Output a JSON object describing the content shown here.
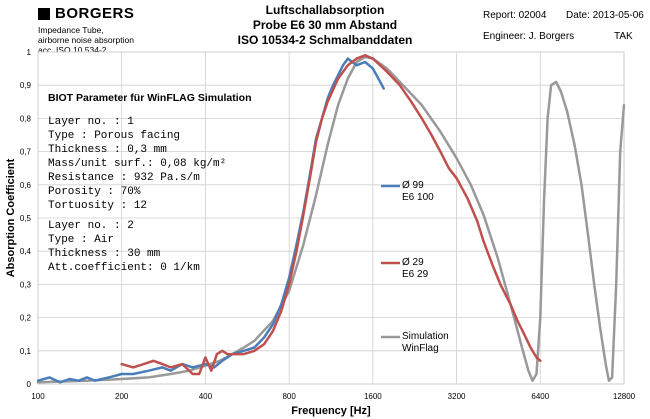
{
  "header": {
    "logo_text": "BORGERS",
    "sub1": "Impedance Tube,",
    "sub2": "airborne noise absorption",
    "sub3": "acc. ISO 10 534-2",
    "title1": "Luftschallabsorption",
    "title2": "Probe E6 30 mm Abstand",
    "title3": "ISO 10534-2 Schmalbanddaten",
    "report": "Report:   02004",
    "date": "Date:   2013-05-06",
    "engineer": "Engineer:   J. Borgers",
    "initials": "TAK"
  },
  "info": {
    "title": "BIOT Parameter für WinFLAG Simulation",
    "lines": [
      "Layer no.      :   1",
      "Type           :   Porous facing",
      "Thickness      :   0,3  mm",
      "Mass/unit surf.:   0,08 kg/m²",
      "Resistance     :  932    Pa.s/m",
      "Porosity       :   70%",
      "Tortuosity     :   12",
      "Layer no.      :   2",
      "Type           :   Air",
      "Thickness      :   30   mm",
      "Att.coefficient:   0    1/km"
    ]
  },
  "chart_data": {
    "type": "line",
    "xlabel": "Frequency [Hz]",
    "ylabel": "Absorption Coefficient",
    "xscale": "log",
    "xlim": [
      100,
      12800
    ],
    "ylim": [
      0,
      1
    ],
    "xticks": [
      100,
      200,
      400,
      800,
      1600,
      3200,
      6400,
      12800
    ],
    "xtick_labels": [
      "100",
      "200",
      "400",
      "800",
      "1600",
      "3200",
      "6400",
      "12800"
    ],
    "yticks": [
      0,
      0.1,
      0.2,
      0.3,
      0.4,
      0.5,
      0.6,
      0.7,
      0.8,
      0.9,
      1
    ],
    "ytick_labels": [
      "0",
      "0,1",
      "0,2",
      "0,3",
      "0,4",
      "0,5",
      "0,6",
      "0,7",
      "0,8",
      "0,9",
      "1"
    ],
    "grid": true,
    "legend_position": "right",
    "series": [
      {
        "name": "Ø 99",
        "sub": "E6 100",
        "color": "#4a7ebb",
        "x": [
          100,
          110,
          120,
          130,
          140,
          150,
          160,
          180,
          200,
          220,
          250,
          280,
          300,
          330,
          360,
          400,
          430,
          460,
          500,
          550,
          600,
          650,
          700,
          750,
          800,
          850,
          900,
          950,
          1000,
          1050,
          1100,
          1150,
          1200,
          1250,
          1300,
          1350,
          1400,
          1500,
          1600,
          1700,
          1750
        ],
        "y": [
          0.01,
          0.02,
          0.005,
          0.015,
          0.01,
          0.02,
          0.01,
          0.02,
          0.03,
          0.03,
          0.04,
          0.05,
          0.04,
          0.06,
          0.05,
          0.06,
          0.05,
          0.07,
          0.09,
          0.1,
          0.11,
          0.14,
          0.18,
          0.24,
          0.32,
          0.42,
          0.52,
          0.63,
          0.74,
          0.8,
          0.86,
          0.9,
          0.93,
          0.96,
          0.98,
          0.97,
          0.96,
          0.97,
          0.95,
          0.91,
          0.89
        ]
      },
      {
        "name": "Ø 29",
        "sub": "E6 29",
        "color": "#c0504d",
        "x": [
          200,
          220,
          240,
          260,
          280,
          300,
          330,
          360,
          380,
          400,
          420,
          440,
          460,
          480,
          500,
          550,
          600,
          650,
          700,
          750,
          800,
          850,
          900,
          950,
          1000,
          1050,
          1100,
          1200,
          1300,
          1400,
          1500,
          1600,
          1700,
          1800,
          1900,
          2000,
          2200,
          2400,
          2600,
          2800,
          3000,
          3200,
          3500,
          3800,
          4000,
          4300,
          4600,
          5000,
          5300,
          5600,
          5900,
          6200,
          6400
        ],
        "y": [
          0.06,
          0.05,
          0.06,
          0.07,
          0.06,
          0.05,
          0.06,
          0.03,
          0.03,
          0.08,
          0.04,
          0.09,
          0.1,
          0.09,
          0.09,
          0.09,
          0.1,
          0.12,
          0.16,
          0.22,
          0.3,
          0.4,
          0.51,
          0.62,
          0.73,
          0.8,
          0.85,
          0.92,
          0.96,
          0.98,
          0.99,
          0.98,
          0.96,
          0.94,
          0.92,
          0.9,
          0.85,
          0.8,
          0.75,
          0.7,
          0.65,
          0.62,
          0.56,
          0.49,
          0.43,
          0.36,
          0.3,
          0.24,
          0.19,
          0.15,
          0.11,
          0.08,
          0.07
        ]
      },
      {
        "name": "Simulation",
        "sub": "WinFlag",
        "color": "#999999",
        "x": [
          100,
          150,
          200,
          250,
          300,
          350,
          400,
          450,
          500,
          550,
          600,
          700,
          800,
          900,
          1000,
          1100,
          1200,
          1300,
          1400,
          1500,
          1600,
          1800,
          2000,
          2400,
          2800,
          3200,
          3600,
          4000,
          4500,
          5000,
          5500,
          5800,
          6000,
          6200,
          6400,
          6600,
          6800,
          7000,
          7300,
          7600,
          8000,
          8500,
          9000,
          9500,
          10000,
          10500,
          11000,
          11300,
          11600,
          12000,
          12400,
          12800
        ],
        "y": [
          0.005,
          0.01,
          0.015,
          0.02,
          0.03,
          0.04,
          0.055,
          0.07,
          0.09,
          0.11,
          0.13,
          0.19,
          0.28,
          0.42,
          0.57,
          0.72,
          0.84,
          0.92,
          0.97,
          0.985,
          0.98,
          0.95,
          0.91,
          0.84,
          0.76,
          0.68,
          0.6,
          0.51,
          0.38,
          0.24,
          0.11,
          0.04,
          0.01,
          0.03,
          0.2,
          0.55,
          0.8,
          0.9,
          0.91,
          0.88,
          0.82,
          0.72,
          0.6,
          0.45,
          0.3,
          0.17,
          0.06,
          0.01,
          0.02,
          0.3,
          0.7,
          0.84
        ]
      }
    ]
  }
}
